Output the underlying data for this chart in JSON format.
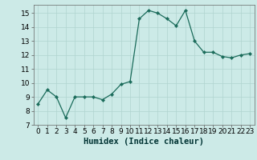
{
  "x": [
    0,
    1,
    2,
    3,
    4,
    5,
    6,
    7,
    8,
    9,
    10,
    11,
    12,
    13,
    14,
    15,
    16,
    17,
    18,
    19,
    20,
    21,
    22,
    23
  ],
  "y": [
    8.5,
    9.5,
    9.0,
    7.5,
    9.0,
    9.0,
    9.0,
    8.8,
    9.2,
    9.9,
    10.1,
    14.6,
    15.2,
    15.0,
    14.6,
    14.1,
    15.2,
    13.0,
    12.2,
    12.2,
    11.9,
    11.8,
    12.0,
    12.1
  ],
  "line_color": "#1a6b5a",
  "marker": "D",
  "marker_size": 2.2,
  "background_color": "#cceae7",
  "grid_color": "#b0d4d0",
  "xlabel": "Humidex (Indice chaleur)",
  "ylim": [
    7,
    15.6
  ],
  "xlim": [
    -0.5,
    23.5
  ],
  "yticks": [
    7,
    8,
    9,
    10,
    11,
    12,
    13,
    14,
    15
  ],
  "xticks": [
    0,
    1,
    2,
    3,
    4,
    5,
    6,
    7,
    8,
    9,
    10,
    11,
    12,
    13,
    14,
    15,
    16,
    17,
    18,
    19,
    20,
    21,
    22,
    23
  ],
  "xlabel_fontsize": 7.5,
  "tick_fontsize": 6.5
}
